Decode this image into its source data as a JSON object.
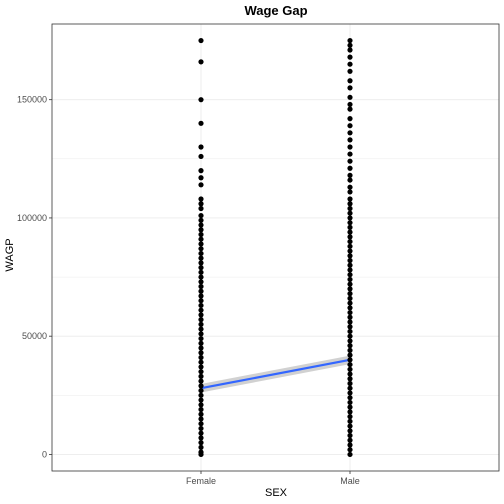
{
  "chart_data": {
    "type": "scatter",
    "title": "Wage Gap",
    "xlabel": "SEX",
    "ylabel": "WAGP",
    "categories": [
      "Female",
      "Male"
    ],
    "y_ticks": [
      0,
      50000,
      100000,
      150000
    ],
    "y_tick_labels": [
      "0",
      "50000",
      "100000",
      "150000"
    ],
    "ylim": [
      -7000,
      182000
    ],
    "grid": true,
    "series": [
      {
        "category": "Female",
        "y": [
          175000,
          166000,
          150000,
          140000,
          130000,
          126000,
          120000,
          117000,
          114000,
          108000,
          106000,
          104000,
          101000,
          99000,
          97000,
          95000,
          93000,
          91000,
          89000,
          87000,
          85000,
          83000,
          81000,
          79000,
          77000,
          75000,
          73000,
          71000,
          69000,
          67000,
          65000,
          63000,
          61000,
          59000,
          57000,
          55000,
          53000,
          51000,
          49000,
          47000,
          45000,
          43000,
          41000,
          39000,
          37000,
          35000,
          33000,
          31000,
          29000,
          27000,
          25000,
          23000,
          21000,
          19000,
          17000,
          15000,
          13000,
          11000,
          9000,
          7000,
          5000,
          3000,
          1000,
          0
        ]
      },
      {
        "category": "Male",
        "y": [
          175000,
          173000,
          171000,
          168000,
          165000,
          162000,
          158000,
          155000,
          151000,
          148000,
          146000,
          142000,
          139000,
          136000,
          133000,
          130000,
          127000,
          124000,
          121000,
          118000,
          116000,
          113000,
          111000,
          108000,
          106000,
          104000,
          102000,
          100000,
          98000,
          96000,
          94000,
          92000,
          90000,
          88000,
          86000,
          84000,
          82000,
          80000,
          78000,
          76000,
          74000,
          72000,
          70000,
          68000,
          66000,
          64000,
          62000,
          60000,
          58000,
          56000,
          54000,
          52000,
          50000,
          48000,
          46000,
          44000,
          42000,
          40000,
          38000,
          36000,
          34000,
          32000,
          30000,
          28000,
          26000,
          24000,
          22000,
          20000,
          18000,
          16000,
          14000,
          12000,
          10000,
          8000,
          6000,
          4000,
          2000,
          0
        ]
      }
    ],
    "trend_line": {
      "x": [
        "Female",
        "Male"
      ],
      "y": [
        28000,
        40000
      ]
    },
    "colors": {
      "points": "#000000",
      "line": "#3366ff",
      "ribbon": "#b3b3b3",
      "grid": "#ebebeb",
      "panel_border": "#333333"
    }
  }
}
